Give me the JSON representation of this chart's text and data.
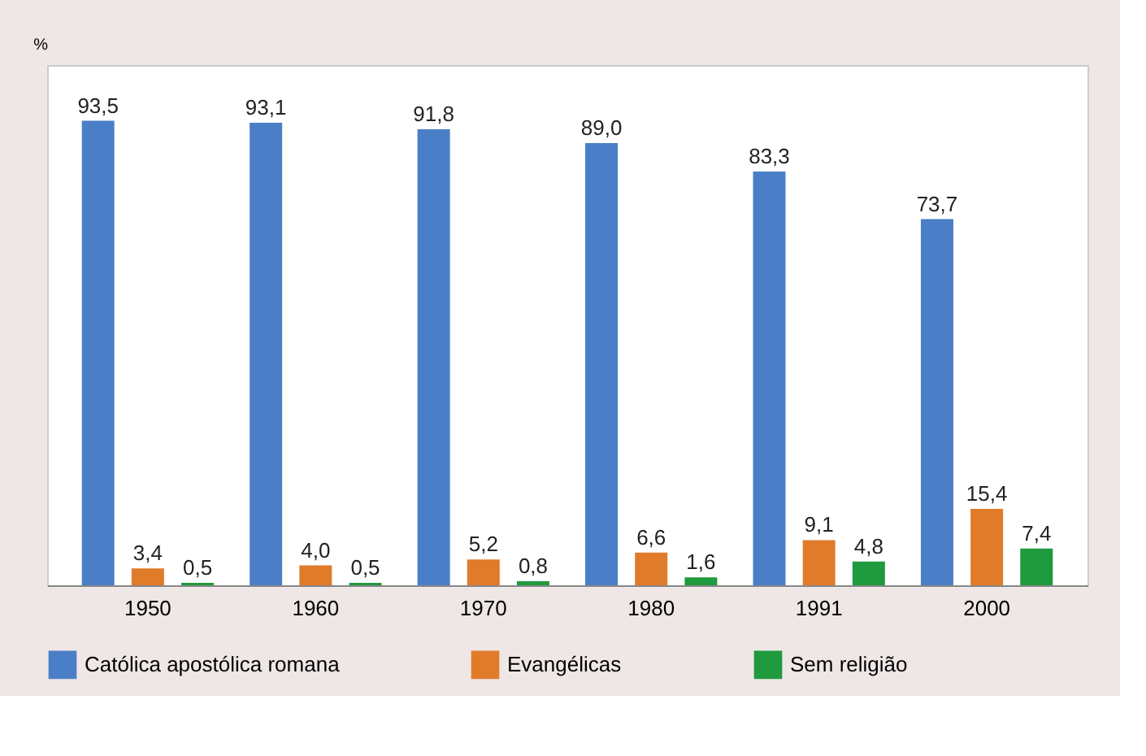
{
  "chart_data": {
    "type": "bar",
    "ylabel": "%",
    "categories": [
      "1950",
      "1960",
      "1970",
      "1980",
      "1991",
      "2000"
    ],
    "series": [
      {
        "name": "Católica apostólica romana",
        "color": "#4a7fc7",
        "values": [
          93.5,
          93.1,
          91.8,
          89.0,
          83.3,
          73.7
        ],
        "value_labels": [
          "93,5",
          "93,1",
          "91,8",
          "89,0",
          "83,3",
          "73,7"
        ]
      },
      {
        "name": "Evangélicas",
        "color": "#e07b2a",
        "values": [
          3.4,
          4.0,
          5.2,
          6.6,
          9.1,
          15.4
        ],
        "value_labels": [
          "3,4",
          "4,0",
          "5,2",
          "6,6",
          "9,1",
          "15,4"
        ]
      },
      {
        "name": "Sem religião",
        "color": "#1f9a3e",
        "values": [
          0.5,
          0.5,
          0.8,
          1.6,
          4.8,
          7.4
        ],
        "value_labels": [
          "0,5",
          "0,5",
          "0,8",
          "1,6",
          "4,8",
          "7,4"
        ]
      }
    ],
    "tick_labels": "x",
    "legend": "bottom"
  }
}
